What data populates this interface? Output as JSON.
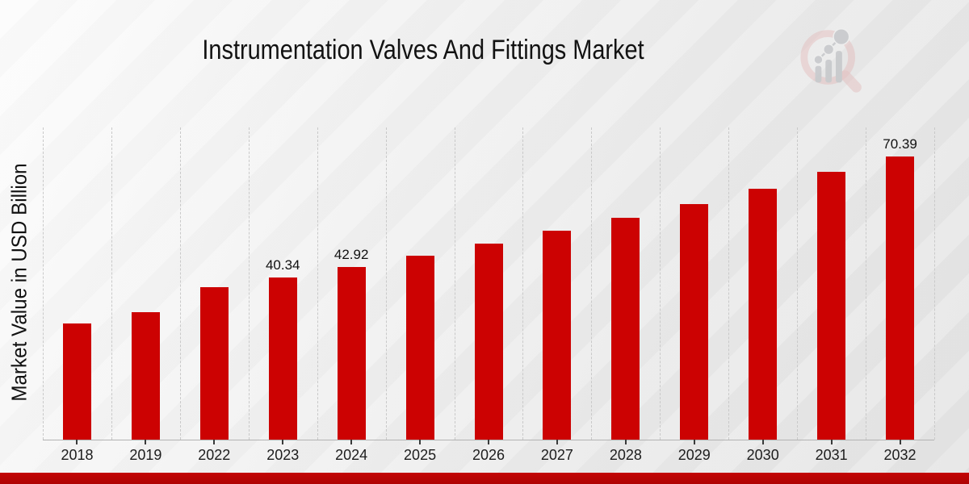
{
  "title": "Instrumentation Valves And Fittings Market",
  "colors": {
    "bar": "#cc0202",
    "footer_accent": "#b90404",
    "gridline": "#c9c9c9",
    "axis_line": "#b3b3b3",
    "text": "#111111",
    "logo_ring": "#e3bcbc",
    "logo_glyph": "#c3c5c8"
  },
  "icons": {
    "logo": "magnifier-bar-chart-logo"
  },
  "chart_data": {
    "type": "bar",
    "title": "Instrumentation Valves And Fittings Market",
    "xlabel": "",
    "ylabel": "Market Value in USD Billion",
    "categories": [
      "2018",
      "2019",
      "2022",
      "2023",
      "2024",
      "2025",
      "2026",
      "2027",
      "2028",
      "2029",
      "2030",
      "2031",
      "2032"
    ],
    "values": [
      28.9,
      31.7,
      37.9,
      40.34,
      42.92,
      45.7,
      48.7,
      51.8,
      55.0,
      58.5,
      62.3,
      66.4,
      70.39
    ],
    "point_labels": [
      "",
      "",
      "",
      "40.34",
      "42.92",
      "",
      "",
      "",
      "",
      "",
      "",
      "",
      "70.39"
    ],
    "ylim": [
      0,
      77.5
    ],
    "grid": "vertical-dashed",
    "legend": "none",
    "bar_color": "#cc0202"
  }
}
